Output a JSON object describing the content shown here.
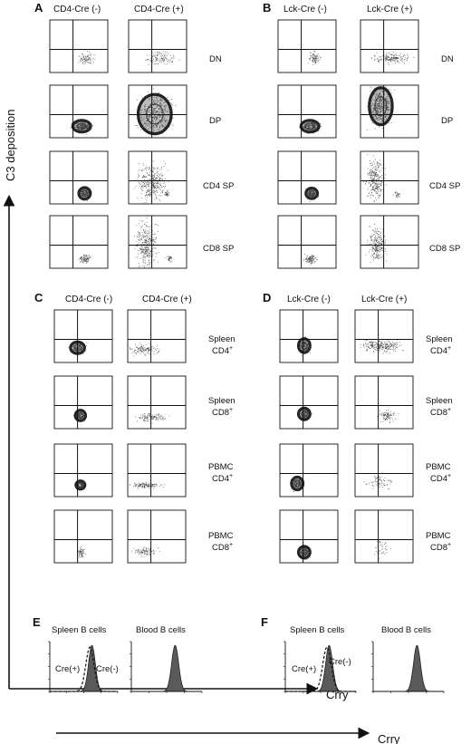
{
  "figure": {
    "panel_A": {
      "letter": "A",
      "columns": [
        "CD4-Cre (-)",
        "CD4-Cre (+)"
      ],
      "rows": [
        {
          "label": "DN"
        },
        {
          "label": "DP"
        },
        {
          "label": "CD4 SP"
        },
        {
          "label": "CD8 SP"
        }
      ]
    },
    "panel_B": {
      "letter": "B",
      "columns": [
        "Lck-Cre (-)",
        "Lck-Cre (+)"
      ],
      "rows": [
        {
          "label": "DN"
        },
        {
          "label": "DP"
        },
        {
          "label": "CD4 SP"
        },
        {
          "label": "CD8 SP"
        }
      ]
    },
    "panel_C": {
      "letter": "C",
      "columns": [
        "CD4-Cre (-)",
        "CD4-Cre (+)"
      ],
      "rows": [
        {
          "label1": "Spleen",
          "label2": "CD4",
          "sup": "+"
        },
        {
          "label1": "Spleen",
          "label2": "CD8",
          "sup": "+"
        },
        {
          "label1": "PBMC",
          "label2": "CD4",
          "sup": "+"
        },
        {
          "label1": "PBMC",
          "label2": "CD8",
          "sup": "+"
        }
      ]
    },
    "panel_D": {
      "letter": "D",
      "columns": [
        "Lck-Cre (-)",
        "Lck-Cre (+)"
      ],
      "rows": [
        {
          "label1": "Spleen",
          "label2": "CD4",
          "sup": "+"
        },
        {
          "label1": "Spleen",
          "label2": "CD8",
          "sup": "+"
        },
        {
          "label1": "PBMC",
          "label2": "CD4",
          "sup": "+"
        },
        {
          "label1": "PBMC",
          "label2": "CD8",
          "sup": "+"
        }
      ]
    },
    "y_axis_title": "C3 deposition",
    "x_axis_title": "Crry",
    "panel_E": {
      "letter": "E",
      "hist_titles": [
        "Spleen B cells",
        "Blood B cells"
      ],
      "annotations": [
        "Cre(+)",
        "Cre(-)"
      ]
    },
    "panel_F": {
      "letter": "F",
      "hist_titles": [
        "Spleen B cells",
        "Blood B cells"
      ],
      "annotations": [
        "Cre(+)",
        "Cre(-)"
      ]
    },
    "bottom_x_axis_title": "Crry",
    "colors": {
      "ink": "#111111",
      "hist_fill": "#5a5a5a",
      "dot": "#444444"
    }
  }
}
